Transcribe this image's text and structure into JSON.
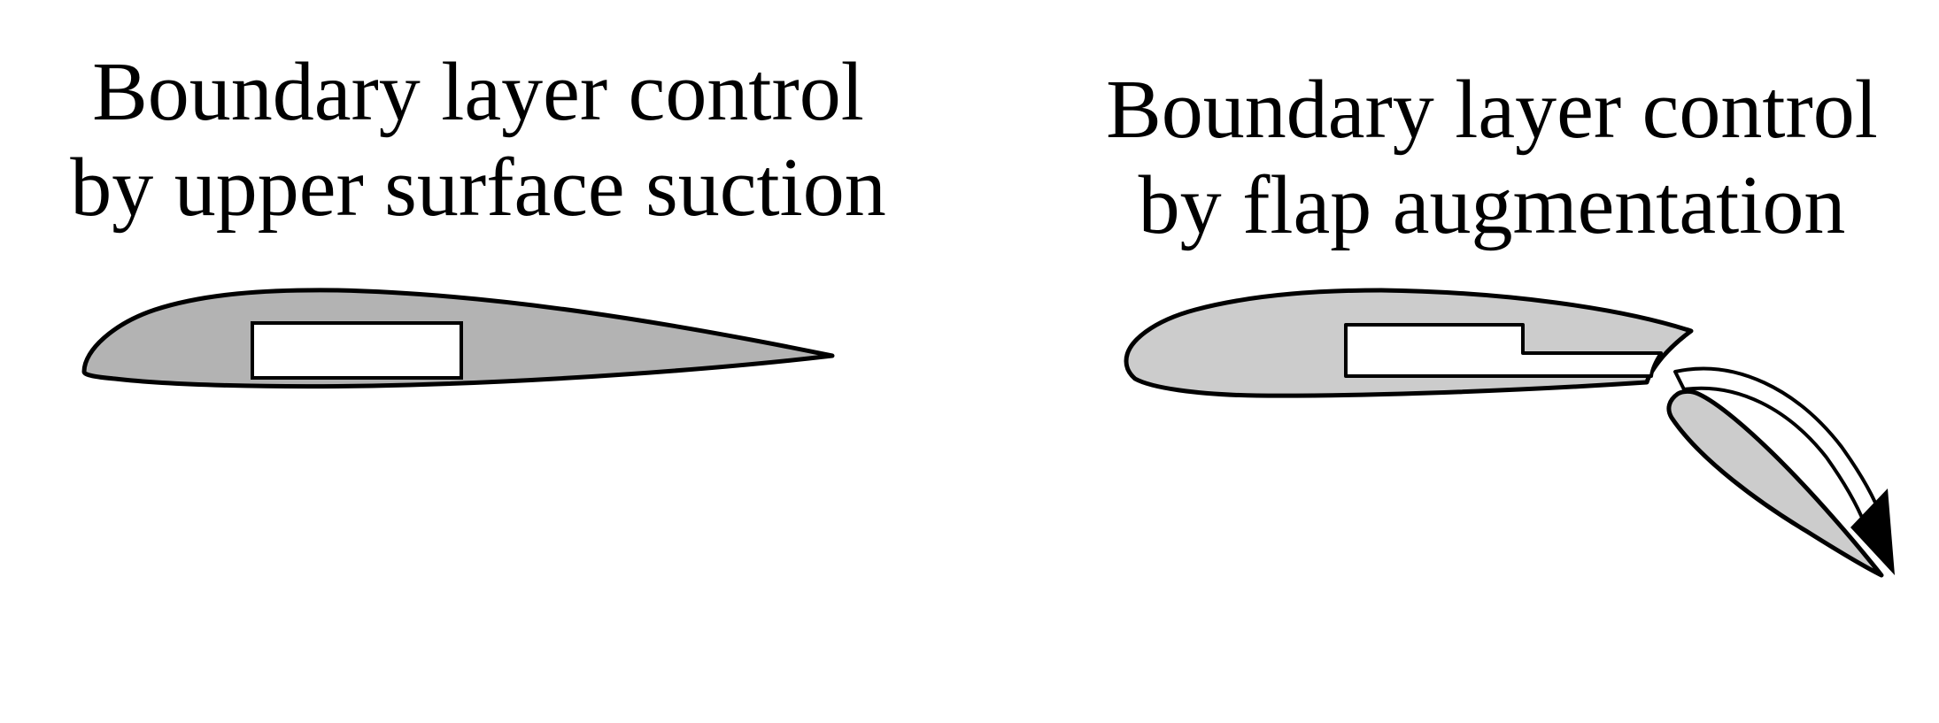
{
  "left_panel": {
    "title_line1": "Boundary layer control",
    "title_line2": "by upper surface suction"
  },
  "right_panel": {
    "title_line1": "Boundary layer control",
    "title_line2": "by flap augmentation"
  },
  "colors": {
    "outline": "#000000",
    "airfoil_fill_left": "#b3b3b3",
    "airfoil_fill_right": "#cccccc",
    "duct_fill": "#ffffff",
    "background": "#ffffff"
  }
}
